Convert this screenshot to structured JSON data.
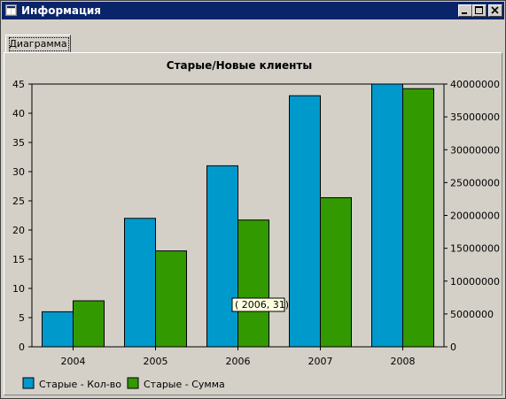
{
  "window": {
    "title": "Информация"
  },
  "tabs": [
    {
      "label": "Диаграмма"
    }
  ],
  "tooltip": {
    "text": "( 2006, 31)"
  },
  "chart_data": {
    "type": "bar",
    "title": "Старые/Новые клиенты",
    "categories": [
      "2004",
      "2005",
      "2006",
      "2007",
      "2008"
    ],
    "series": [
      {
        "name": "Старые - Кол-во",
        "axis": "left",
        "color": "#0099cc",
        "values": [
          6,
          22,
          31,
          43,
          45
        ]
      },
      {
        "name": "Старые - Сумма",
        "axis": "right",
        "color": "#339900",
        "values": [
          7000000,
          14600000,
          19300000,
          22700000,
          39300000
        ]
      }
    ],
    "y_left": {
      "min": 0,
      "max": 45,
      "ticks": [
        "0",
        "5",
        "10",
        "15",
        "20",
        "25",
        "30",
        "35",
        "40",
        "45"
      ]
    },
    "y_right": {
      "min": 0,
      "max": 40000000,
      "ticks": [
        "0",
        "5000000",
        "10000000",
        "15000000",
        "20000000",
        "25000000",
        "30000000",
        "35000000",
        "40000000"
      ]
    },
    "legend_position": "bottom-left",
    "grid": false
  }
}
